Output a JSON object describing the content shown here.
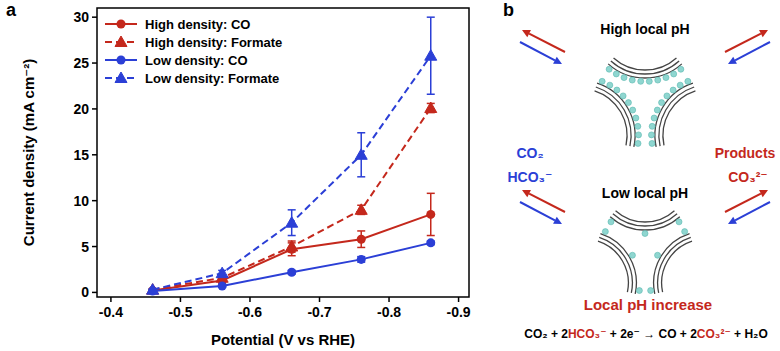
{
  "chart_data": {
    "type": "line",
    "panel_label": "a",
    "x_label": "Potential (V vs RHE)",
    "y_label": "Current density (mA cm⁻²)",
    "x": [
      -0.46,
      -0.56,
      -0.66,
      -0.76,
      -0.86
    ],
    "xlim": [
      -0.38,
      -0.915
    ],
    "xticks": [
      -0.4,
      -0.5,
      -0.6,
      -0.7,
      -0.8,
      -0.9
    ],
    "ylim": [
      -0.5,
      31
    ],
    "yticks": [
      0,
      5,
      10,
      15,
      20,
      25,
      30
    ],
    "grid": false,
    "legend": "upper left",
    "series": [
      {
        "name": "High density: CO",
        "color": "#c4281c",
        "marker": "circle",
        "line_style": "solid",
        "values": [
          0.2,
          1.3,
          4.7,
          5.8,
          8.5
        ],
        "errors": [
          0.1,
          0.3,
          0.7,
          0.9,
          2.3
        ]
      },
      {
        "name": "High density: Formate",
        "color": "#c4281c",
        "marker": "triangle",
        "line_style": "dashed",
        "values": [
          0.3,
          1.6,
          5.0,
          9.0,
          20.1
        ],
        "errors": [
          0.1,
          0.2,
          0.6,
          0.5,
          0.5
        ]
      },
      {
        "name": "Low density: CO",
        "color": "#2b3fd6",
        "marker": "circle",
        "line_style": "solid",
        "values": [
          0.15,
          0.7,
          2.2,
          3.6,
          5.4
        ],
        "errors": [
          0.05,
          0.1,
          0.2,
          0.3,
          0.2
        ]
      },
      {
        "name": "Low density: Formate",
        "color": "#2b3fd6",
        "marker": "triangle",
        "line_style": "dashed",
        "values": [
          0.3,
          2.1,
          7.6,
          15.0,
          25.8
        ],
        "errors": [
          0.1,
          0.3,
          1.4,
          2.4,
          4.2
        ]
      }
    ]
  },
  "diagram": {
    "panel_label": "b",
    "top_label": "High local pH",
    "bottom_label": "Low local pH",
    "reactants": [
      "CO₂",
      "HCO₃⁻"
    ],
    "products_label": "Products",
    "products": [
      "CO₃²⁻"
    ],
    "caption": "Local pH increase",
    "reactant_color": "#2b3fd6",
    "product_color": "#c4281c",
    "equation": [
      {
        "text": "CO₂ + 2"
      },
      {
        "text": "HCO₃⁻",
        "color": "#c4281c"
      },
      {
        "text": " + 2e⁻ → CO + 2"
      },
      {
        "text": "CO₃²⁻",
        "color": "#c4281c"
      },
      {
        "text": " + H₂O"
      }
    ]
  }
}
